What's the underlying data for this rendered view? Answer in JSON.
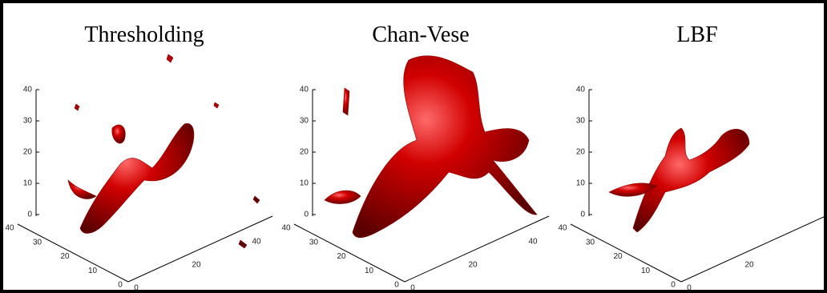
{
  "panels": [
    {
      "title": "Thresholding",
      "z_ticks": [
        0,
        10,
        20,
        30,
        40
      ],
      "y_ticks": [
        0,
        10,
        20,
        30,
        40
      ],
      "x_ticks": [
        0,
        20,
        40
      ]
    },
    {
      "title": "Chan-Vese",
      "z_ticks": [
        0,
        10,
        20,
        30,
        40
      ],
      "y_ticks": [
        0,
        10,
        20,
        30,
        40
      ],
      "x_ticks": [
        0,
        20,
        40
      ]
    },
    {
      "title": "LBF",
      "z_ticks": [
        0,
        10,
        20,
        30,
        40
      ],
      "y_ticks": [
        0,
        10,
        20,
        30,
        40
      ],
      "x_ticks": [
        0,
        20
      ]
    }
  ]
}
